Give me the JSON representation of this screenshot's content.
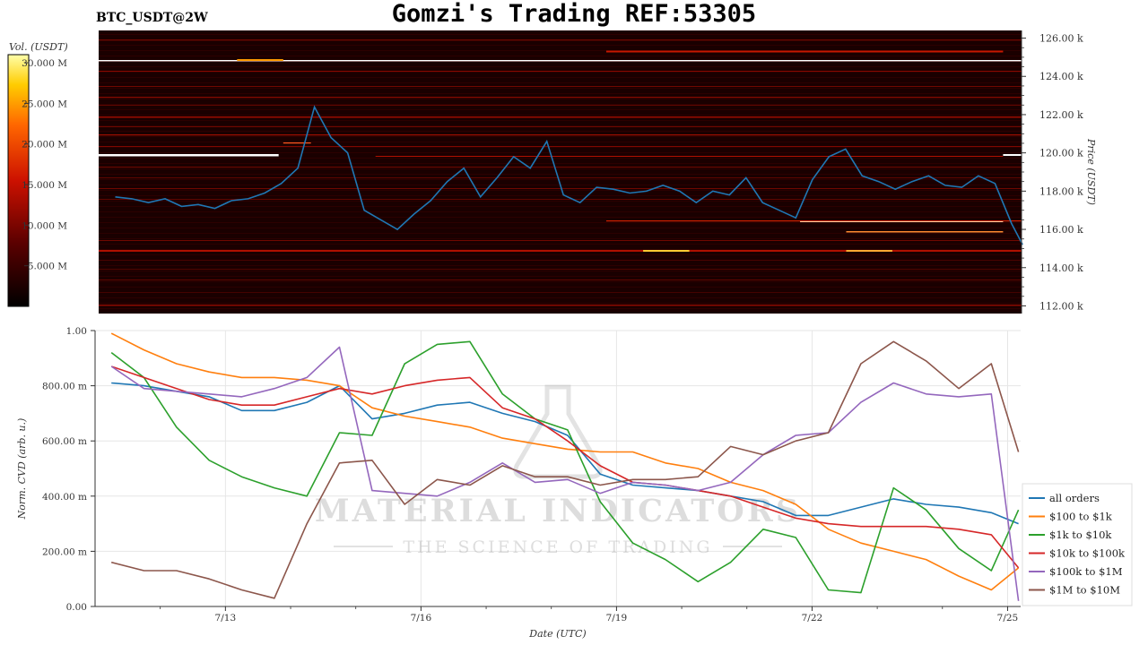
{
  "header": {
    "title": "Gomzi's Trading REF:53305",
    "pair_label": "BTC_USDT@2W"
  },
  "watermark": {
    "brand": "MATERIAL INDICATORS",
    "tagline": "THE SCIENCE OF TRADING"
  },
  "chart_data": [
    {
      "type": "heatmap",
      "title": "",
      "ylabel": "Price (USDT)",
      "colorbar_label": "Vol. (USDT)",
      "colorbar_ticks": [
        "5.000 M",
        "10.000 M",
        "15.000 M",
        "20.000 M",
        "25.000 M",
        "30.000 M"
      ],
      "colorbar_range": [
        0,
        31000000
      ],
      "y_ticks": [
        "112.00 k",
        "114.00 k",
        "116.00 k",
        "118.00 k",
        "120.00 k",
        "122.00 k",
        "124.00 k",
        "126.00 k"
      ],
      "ylim": [
        111600,
        126400
      ],
      "colors": {
        "heat_bg": "#1a0000",
        "price_line": "#1f77b4",
        "hot": "#ffff66",
        "warm": "#ff3300"
      },
      "price_series": {
        "name": "BTC price",
        "x": [
          "07-11 12:00",
          "07-11 18:00",
          "07-12 00:00",
          "07-12 06:00",
          "07-12 12:00",
          "07-12 18:00",
          "07-13 00:00",
          "07-13 06:00",
          "07-13 12:00",
          "07-13 18:00",
          "07-14 00:00",
          "07-14 06:00",
          "07-14 12:00",
          "07-14 18:00",
          "07-15 00:00",
          "07-15 06:00",
          "07-15 12:00",
          "07-15 18:00",
          "07-16 00:00",
          "07-16 06:00",
          "07-16 12:00",
          "07-16 18:00",
          "07-17 00:00",
          "07-17 06:00",
          "07-17 12:00",
          "07-17 18:00",
          "07-18 00:00",
          "07-18 06:00",
          "07-18 12:00",
          "07-18 18:00",
          "07-19 00:00",
          "07-19 06:00",
          "07-19 12:00",
          "07-19 18:00",
          "07-20 00:00",
          "07-20 06:00",
          "07-20 12:00",
          "07-20 18:00",
          "07-21 00:00",
          "07-21 06:00",
          "07-21 12:00",
          "07-21 18:00",
          "07-22 00:00",
          "07-22 06:00",
          "07-22 12:00",
          "07-22 18:00",
          "07-23 00:00",
          "07-23 06:00",
          "07-23 12:00",
          "07-23 18:00",
          "07-24 00:00",
          "07-24 06:00",
          "07-24 12:00",
          "07-24 18:00",
          "07-25 00:00",
          "07-25 04:00"
        ],
        "y": [
          117700,
          117600,
          117400,
          117600,
          117200,
          117300,
          117100,
          117500,
          117600,
          117900,
          118400,
          119200,
          122400,
          120800,
          120000,
          117000,
          116500,
          116000,
          116800,
          117500,
          118500,
          119200,
          117700,
          118700,
          119800,
          119200,
          120600,
          117800,
          117400,
          118200,
          118100,
          117900,
          118000,
          118300,
          118000,
          117400,
          118000,
          117800,
          118700,
          117400,
          117000,
          116600,
          118600,
          119800,
          120200,
          118800,
          118500,
          118100,
          118500,
          118800,
          118300,
          118200,
          118800,
          118400,
          116300,
          115200
        ]
      }
    },
    {
      "type": "line",
      "title": "",
      "xlabel": "Date (UTC)",
      "ylabel": "Norm. CVD (arb. u.)",
      "ylim": [
        0,
        1
      ],
      "y_ticks": [
        "0.00",
        "200.00 m",
        "400.00 m",
        "600.00 m",
        "800.00 m",
        "1.00"
      ],
      "x_ticks": [
        "7/13",
        "7/16",
        "7/19",
        "7/22",
        "7/25"
      ],
      "legend_position": "bottom-right",
      "x": [
        "07-11 06:00",
        "07-11 18:00",
        "07-12 06:00",
        "07-12 18:00",
        "07-13 06:00",
        "07-13 18:00",
        "07-14 06:00",
        "07-14 18:00",
        "07-15 06:00",
        "07-15 18:00",
        "07-16 06:00",
        "07-16 18:00",
        "07-17 06:00",
        "07-17 18:00",
        "07-18 06:00",
        "07-18 18:00",
        "07-19 06:00",
        "07-19 18:00",
        "07-20 06:00",
        "07-20 18:00",
        "07-21 06:00",
        "07-21 18:00",
        "07-22 06:00",
        "07-22 18:00",
        "07-23 06:00",
        "07-23 18:00",
        "07-24 06:00",
        "07-24 18:00",
        "07-25 04:00"
      ],
      "series": [
        {
          "name": "all orders",
          "color": "#1f77b4",
          "values": [
            0.81,
            0.8,
            0.78,
            0.76,
            0.71,
            0.71,
            0.74,
            0.8,
            0.68,
            0.7,
            0.73,
            0.74,
            0.7,
            0.67,
            0.62,
            0.48,
            0.44,
            0.43,
            0.42,
            0.4,
            0.38,
            0.33,
            0.33,
            0.36,
            0.39,
            0.37,
            0.36,
            0.34,
            0.3
          ]
        },
        {
          "name": "$100 to $1k",
          "color": "#ff7f0e",
          "values": [
            0.99,
            0.93,
            0.88,
            0.85,
            0.83,
            0.83,
            0.82,
            0.8,
            0.72,
            0.69,
            0.67,
            0.65,
            0.61,
            0.59,
            0.57,
            0.56,
            0.56,
            0.52,
            0.5,
            0.45,
            0.42,
            0.37,
            0.28,
            0.23,
            0.2,
            0.17,
            0.11,
            0.06,
            0.14
          ]
        },
        {
          "name": "$1k to $10k",
          "color": "#2ca02c",
          "values": [
            0.92,
            0.83,
            0.65,
            0.53,
            0.47,
            0.43,
            0.4,
            0.63,
            0.62,
            0.88,
            0.95,
            0.96,
            0.77,
            0.68,
            0.64,
            0.38,
            0.23,
            0.17,
            0.09,
            0.16,
            0.28,
            0.25,
            0.06,
            0.05,
            0.43,
            0.35,
            0.21,
            0.13,
            0.35
          ]
        },
        {
          "name": "$10k to $100k",
          "color": "#d62728",
          "values": [
            0.87,
            0.83,
            0.79,
            0.75,
            0.73,
            0.73,
            0.76,
            0.79,
            0.77,
            0.8,
            0.82,
            0.83,
            0.72,
            0.68,
            0.6,
            0.51,
            0.45,
            0.44,
            0.42,
            0.4,
            0.36,
            0.32,
            0.3,
            0.29,
            0.29,
            0.29,
            0.28,
            0.26,
            0.14
          ]
        },
        {
          "name": "$100k to $1M",
          "color": "#9467bd",
          "values": [
            0.87,
            0.79,
            0.78,
            0.77,
            0.76,
            0.79,
            0.83,
            0.94,
            0.42,
            0.41,
            0.4,
            0.45,
            0.52,
            0.45,
            0.46,
            0.41,
            0.45,
            0.44,
            0.42,
            0.45,
            0.55,
            0.62,
            0.63,
            0.74,
            0.81,
            0.77,
            0.76,
            0.77,
            0.02
          ]
        },
        {
          "name": "$1M to $10M",
          "color": "#8c564b",
          "values": [
            0.16,
            0.13,
            0.13,
            0.1,
            0.06,
            0.03,
            0.3,
            0.52,
            0.53,
            0.37,
            0.46,
            0.44,
            0.51,
            0.47,
            0.47,
            0.44,
            0.46,
            0.46,
            0.47,
            0.58,
            0.55,
            0.6,
            0.63,
            0.88,
            0.96,
            0.89,
            0.79,
            0.88,
            0.56
          ]
        }
      ]
    }
  ]
}
